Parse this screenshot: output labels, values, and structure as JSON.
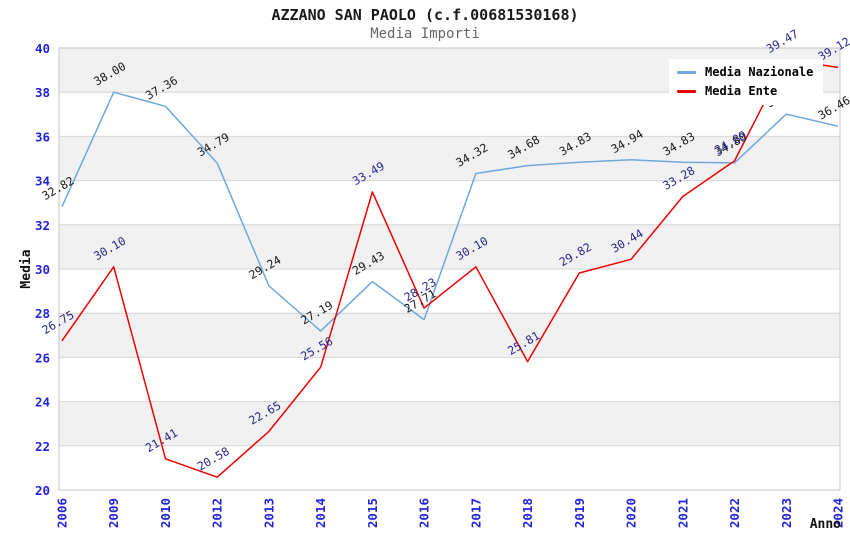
{
  "title": "AZZANO SAN PAOLO (c.f.00681530168)",
  "subtitle": "Media Importi",
  "legend": {
    "items": [
      {
        "label": "Media Nazionale",
        "color": "#6FA8DC"
      },
      {
        "label": "Media Ente",
        "color": "#EE0000"
      }
    ]
  },
  "chart_data": {
    "type": "line",
    "title": "AZZANO SAN PAOLO (c.f.00681530168)",
    "subtitle": "Media Importi",
    "xlabel": "Anno",
    "ylabel": "Media",
    "categories": [
      "2006",
      "2009",
      "2010",
      "2012",
      "2013",
      "2014",
      "2015",
      "2016",
      "2017",
      "2018",
      "2019",
      "2020",
      "2021",
      "2022",
      "2023",
      "2024"
    ],
    "series": [
      {
        "name": "Media Nazionale",
        "color": "#6FA8DC",
        "label_color": "#1a1a1a",
        "values": [
          32.82,
          38.0,
          37.36,
          34.79,
          29.24,
          27.19,
          29.43,
          27.71,
          34.32,
          34.68,
          34.83,
          34.94,
          34.83,
          34.8,
          37.01,
          36.46
        ]
      },
      {
        "name": "Media Ente",
        "color": "#EE0000",
        "label_color": "#26268F",
        "values": [
          26.75,
          30.1,
          21.41,
          20.58,
          22.65,
          25.56,
          33.49,
          28.23,
          30.1,
          25.81,
          29.82,
          30.44,
          33.28,
          34.89,
          39.47,
          39.12
        ]
      }
    ],
    "ylim": [
      20,
      40
    ],
    "y_ticks": [
      20,
      22,
      24,
      26,
      28,
      30,
      32,
      34,
      36,
      38,
      40
    ],
    "grid": true,
    "legend_position": "top-right"
  },
  "colors": {
    "band": "#F1F1F1",
    "grid": "#D6D6D6",
    "border": "#C4C4C4",
    "tick": "#2323DB",
    "axis_title": "#111111",
    "background": "#FFFFFF"
  }
}
